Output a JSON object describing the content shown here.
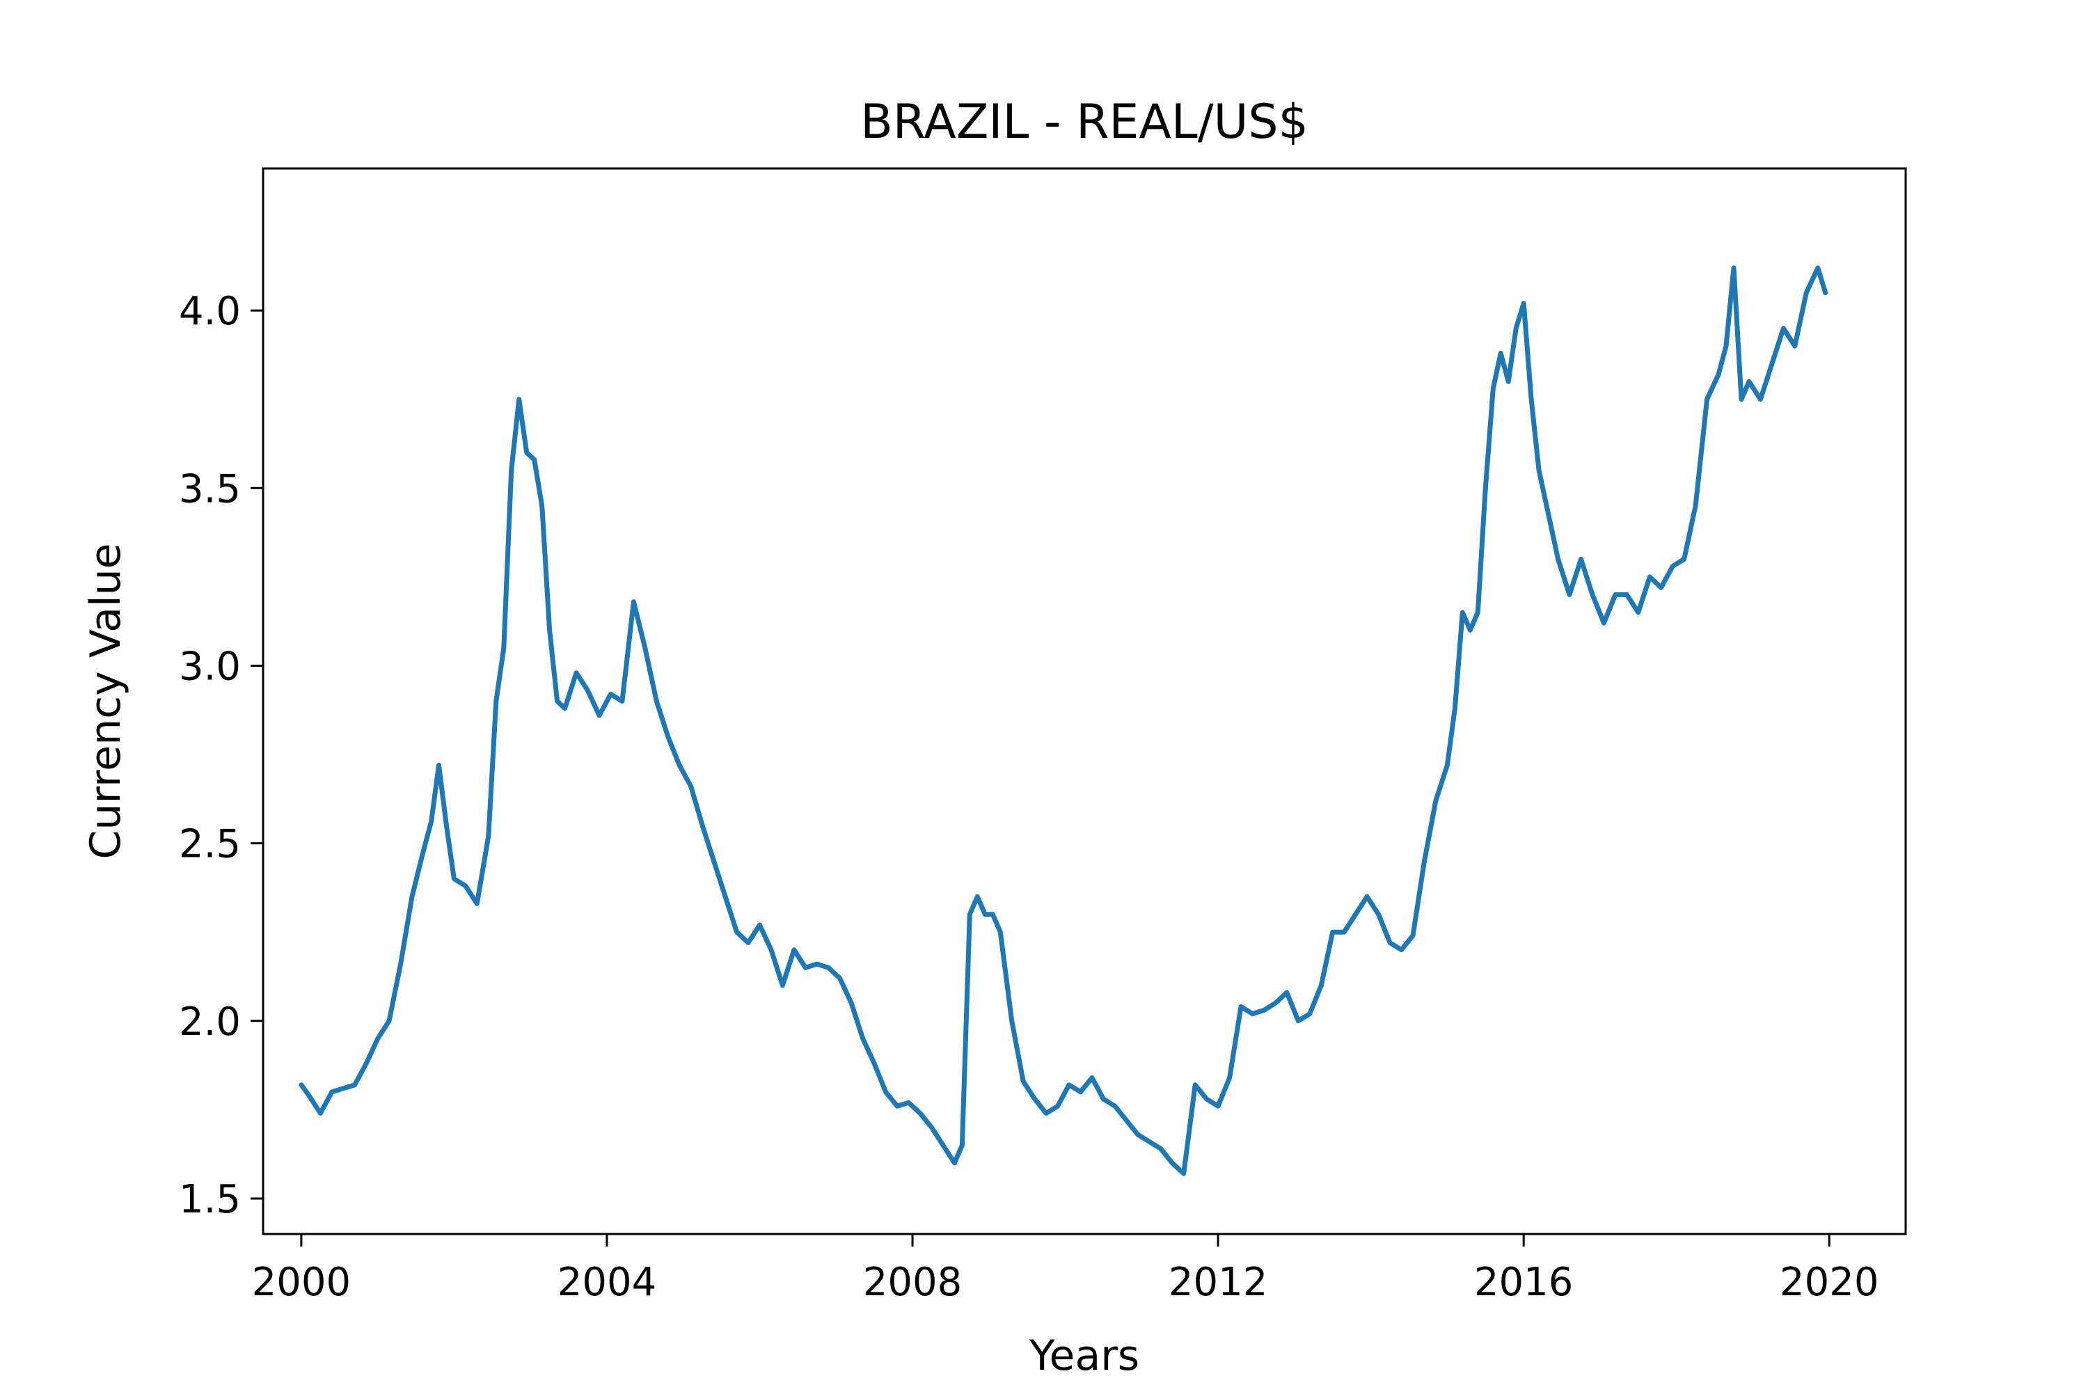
{
  "chart_data": {
    "type": "line",
    "title": "BRAZIL - REAL/US$",
    "xlabel": "Years",
    "ylabel": "Currency Value",
    "xlim": [
      1999.5,
      2021.0
    ],
    "ylim": [
      1.4,
      4.4
    ],
    "x_ticks": [
      2000,
      2004,
      2008,
      2012,
      2016,
      2020
    ],
    "x_tick_labels": [
      "2000",
      "2004",
      "2008",
      "2012",
      "2016",
      "2020"
    ],
    "y_ticks": [
      1.5,
      2.0,
      2.5,
      3.0,
      3.5,
      4.0
    ],
    "y_tick_labels": [
      "1.5",
      "2.0",
      "2.5",
      "3.0",
      "3.5",
      "4.0"
    ],
    "grid": false,
    "series": [
      {
        "color": "#1f77b4",
        "x": [
          2000.0,
          2000.1,
          2000.25,
          2000.4,
          2000.55,
          2000.7,
          2000.85,
          2001.0,
          2001.15,
          2001.3,
          2001.45,
          2001.6,
          2001.7,
          2001.8,
          2001.9,
          2002.0,
          2002.15,
          2002.3,
          2002.45,
          2002.55,
          2002.65,
          2002.75,
          2002.85,
          2002.95,
          2003.05,
          2003.15,
          2003.25,
          2003.35,
          2003.45,
          2003.6,
          2003.75,
          2003.9,
          2004.05,
          2004.2,
          2004.35,
          2004.5,
          2004.65,
          2004.8,
          2004.95,
          2005.1,
          2005.25,
          2005.4,
          2005.55,
          2005.7,
          2005.85,
          2006.0,
          2006.15,
          2006.3,
          2006.45,
          2006.6,
          2006.75,
          2006.9,
          2007.05,
          2007.2,
          2007.35,
          2007.5,
          2007.65,
          2007.8,
          2007.95,
          2008.1,
          2008.25,
          2008.4,
          2008.55,
          2008.65,
          2008.75,
          2008.85,
          2008.95,
          2009.05,
          2009.15,
          2009.3,
          2009.45,
          2009.6,
          2009.75,
          2009.9,
          2010.05,
          2010.2,
          2010.35,
          2010.5,
          2010.65,
          2010.8,
          2010.95,
          2011.1,
          2011.25,
          2011.4,
          2011.55,
          2011.7,
          2011.85,
          2012.0,
          2012.15,
          2012.3,
          2012.45,
          2012.6,
          2012.75,
          2012.9,
          2013.05,
          2013.2,
          2013.35,
          2013.5,
          2013.65,
          2013.8,
          2013.95,
          2014.1,
          2014.25,
          2014.4,
          2014.55,
          2014.7,
          2014.85,
          2015.0,
          2015.1,
          2015.2,
          2015.3,
          2015.4,
          2015.5,
          2015.6,
          2015.7,
          2015.8,
          2015.9,
          2016.0,
          2016.1,
          2016.2,
          2016.3,
          2016.45,
          2016.6,
          2016.75,
          2016.9,
          2017.05,
          2017.2,
          2017.35,
          2017.5,
          2017.65,
          2017.8,
          2017.95,
          2018.1,
          2018.25,
          2018.4,
          2018.55,
          2018.65,
          2018.75,
          2018.85,
          2018.95,
          2019.1,
          2019.25,
          2019.4,
          2019.55,
          2019.7,
          2019.85,
          2019.95
        ],
        "y": [
          1.82,
          1.79,
          1.74,
          1.8,
          1.81,
          1.82,
          1.88,
          1.95,
          2.0,
          2.16,
          2.35,
          2.48,
          2.56,
          2.72,
          2.55,
          2.4,
          2.38,
          2.33,
          2.52,
          2.9,
          3.05,
          3.55,
          3.75,
          3.6,
          3.58,
          3.45,
          3.1,
          2.9,
          2.88,
          2.98,
          2.93,
          2.86,
          2.92,
          2.9,
          3.18,
          3.05,
          2.9,
          2.8,
          2.72,
          2.66,
          2.55,
          2.45,
          2.35,
          2.25,
          2.22,
          2.27,
          2.2,
          2.1,
          2.2,
          2.15,
          2.16,
          2.15,
          2.12,
          2.05,
          1.95,
          1.88,
          1.8,
          1.76,
          1.77,
          1.74,
          1.7,
          1.65,
          1.6,
          1.65,
          2.3,
          2.35,
          2.3,
          2.3,
          2.25,
          2.0,
          1.83,
          1.78,
          1.74,
          1.76,
          1.82,
          1.8,
          1.84,
          1.78,
          1.76,
          1.72,
          1.68,
          1.66,
          1.64,
          1.6,
          1.57,
          1.82,
          1.78,
          1.76,
          1.84,
          2.04,
          2.02,
          2.03,
          2.05,
          2.08,
          2.0,
          2.02,
          2.1,
          2.25,
          2.25,
          2.3,
          2.35,
          2.3,
          2.22,
          2.2,
          2.24,
          2.45,
          2.62,
          2.72,
          2.88,
          3.15,
          3.1,
          3.15,
          3.5,
          3.78,
          3.88,
          3.8,
          3.95,
          4.02,
          3.75,
          3.55,
          3.45,
          3.3,
          3.2,
          3.3,
          3.2,
          3.12,
          3.2,
          3.2,
          3.15,
          3.25,
          3.22,
          3.28,
          3.3,
          3.45,
          3.75,
          3.82,
          3.9,
          4.12,
          3.75,
          3.8,
          3.75,
          3.85,
          3.95,
          3.9,
          4.05,
          4.12,
          4.05
        ]
      }
    ]
  }
}
